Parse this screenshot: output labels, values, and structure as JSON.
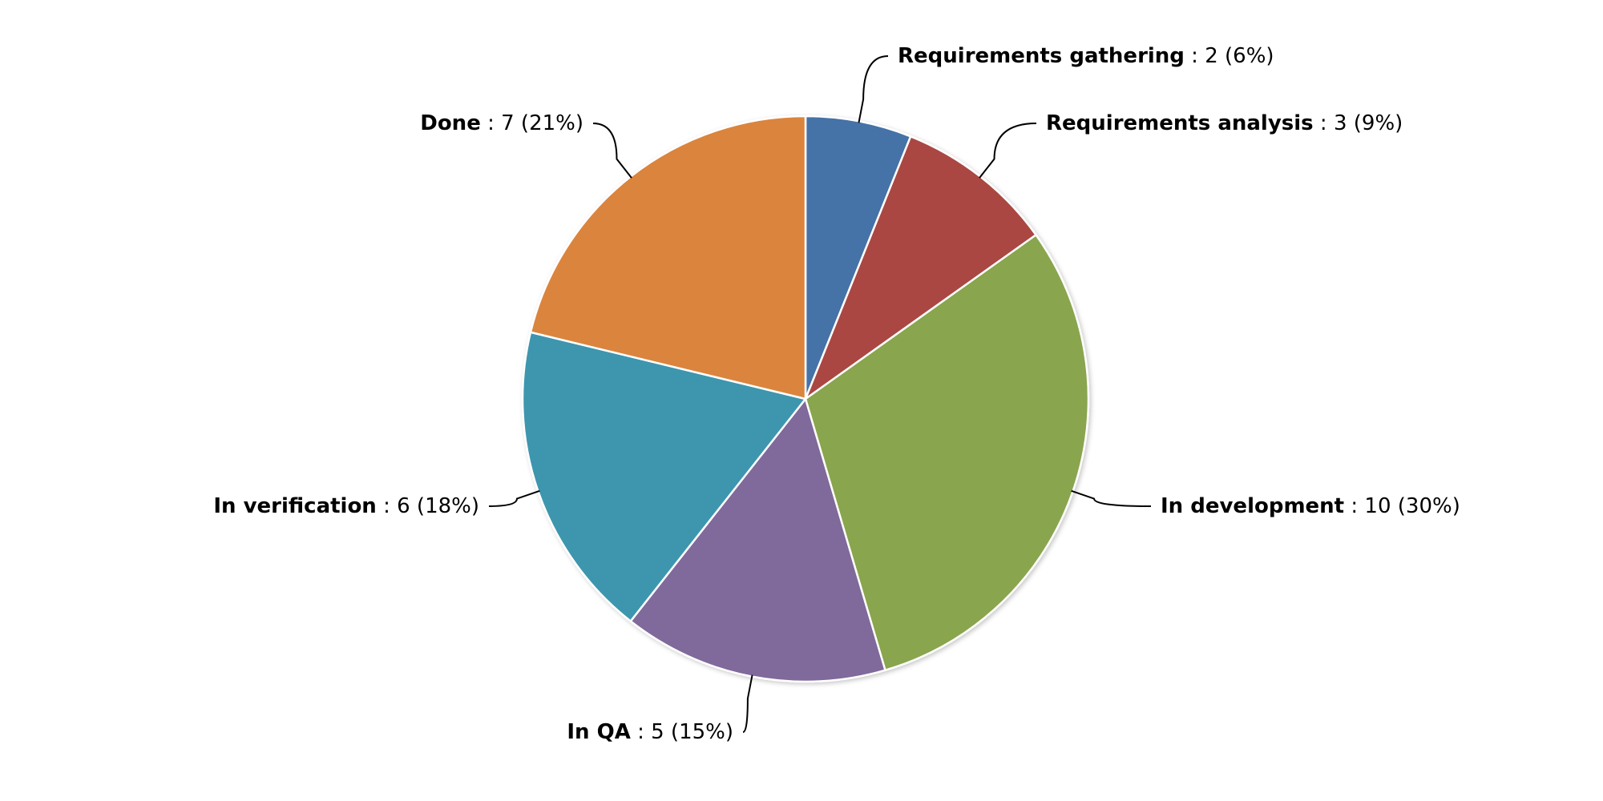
{
  "chart_data": {
    "type": "pie",
    "start_angle_deg": 0,
    "direction": "clockwise",
    "slices": [
      {
        "name": "Requirements gathering",
        "value": 2,
        "value_text": ": 2 (6%)",
        "color": "#4572a7",
        "label_side": "right"
      },
      {
        "name": "Requirements analysis",
        "value": 3,
        "value_text": ": 3 (9%)",
        "color": "#aa4643",
        "label_side": "right"
      },
      {
        "name": "In development",
        "value": 10,
        "value_text": ": 10 (30%)",
        "color": "#89a54e",
        "label_side": "right"
      },
      {
        "name": "In QA",
        "value": 5,
        "value_text": ": 5 (15%)",
        "color": "#80699b",
        "label_side": "left"
      },
      {
        "name": "In verification",
        "value": 6,
        "value_text": ": 6 (18%)",
        "color": "#3d96ae",
        "label_side": "left"
      },
      {
        "name": "Done",
        "value": 7,
        "value_text": ": 7 (21%)",
        "color": "#db843d",
        "label_side": "left"
      }
    ]
  }
}
